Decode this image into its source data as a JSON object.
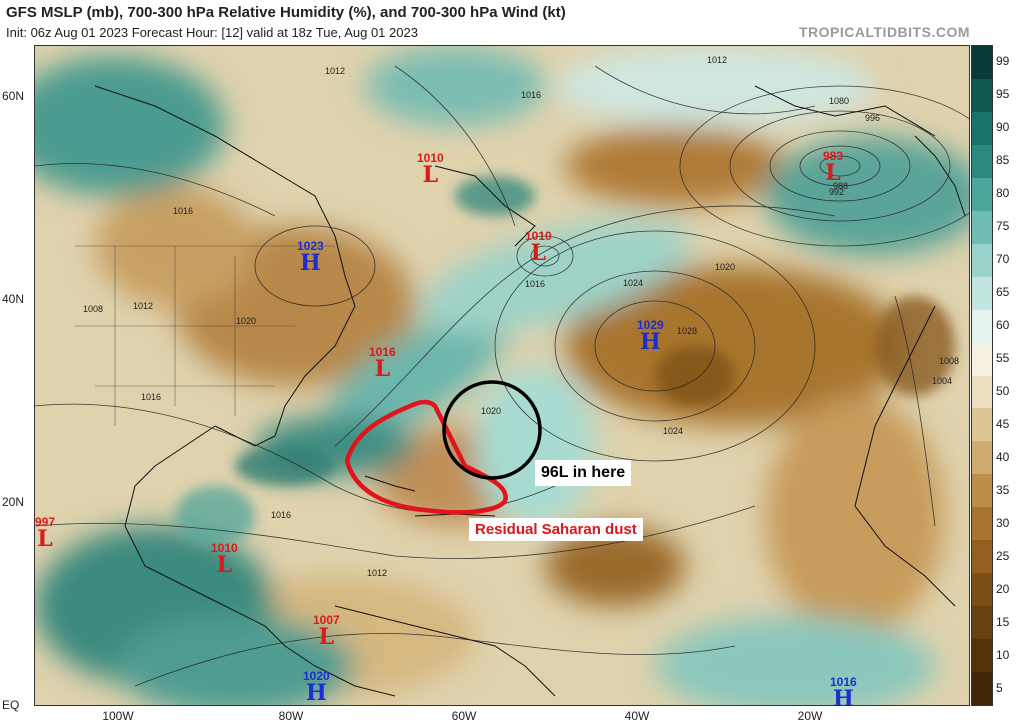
{
  "header": {
    "title": "GFS MSLP (mb), 700-300 hPa Relative Humidity (%), and 700-300 hPa Wind (kt)",
    "subtitle": "Init: 06z Aug 01 2023   Forecast Hour: [12]   valid at 18z Tue, Aug 01 2023",
    "brand": "TROPICALTIDBITS.COM"
  },
  "axes": {
    "lat_labels": [
      "60N",
      "40N",
      "20N",
      "EQ"
    ],
    "lon_labels": [
      "100W",
      "80W",
      "60W",
      "40W",
      "20W"
    ]
  },
  "colorbar": {
    "labels": [
      "99",
      "95",
      "90",
      "85",
      "80",
      "75",
      "70",
      "65",
      "60",
      "55",
      "50",
      "45",
      "40",
      "35",
      "30",
      "25",
      "20",
      "15",
      "10",
      "5"
    ],
    "colors": [
      "#0b3b36",
      "#0f5a4f",
      "#18736a",
      "#2b8a80",
      "#4aa59a",
      "#6fbcb2",
      "#98d2c8",
      "#c2e6df",
      "#e6f4f0",
      "#f5f0e2",
      "#ecdfbf",
      "#dec594",
      "#cfab6e",
      "#bd8d4a",
      "#a9742f",
      "#93601f",
      "#7d4f16",
      "#67400f",
      "#53320a",
      "#402606"
    ]
  },
  "systems": [
    {
      "type": "H",
      "pressure": "1023"
    },
    {
      "type": "H",
      "pressure": "1029"
    },
    {
      "type": "H",
      "pressure": "1020"
    },
    {
      "type": "H",
      "pressure": "1016"
    },
    {
      "type": "L",
      "pressure": "1010"
    },
    {
      "type": "L",
      "pressure": "1010"
    },
    {
      "type": "L",
      "pressure": "983"
    },
    {
      "type": "L",
      "pressure": "1016"
    },
    {
      "type": "L",
      "pressure": "997"
    },
    {
      "type": "L",
      "pressure": "1010"
    },
    {
      "type": "L",
      "pressure": "1007"
    }
  ],
  "isobar_labels": [
    "1012",
    "1016",
    "1020",
    "1024",
    "1028",
    "1008",
    "1004",
    "996",
    "1080",
    "988",
    "992",
    "1012",
    "1016",
    "1020",
    "1024",
    "1016",
    "1020",
    "1016",
    "1012",
    "1012",
    "1008",
    "1016"
  ],
  "annotations": {
    "circle_label": "96L in here",
    "dust_label": "Residual Saharan dust"
  }
}
